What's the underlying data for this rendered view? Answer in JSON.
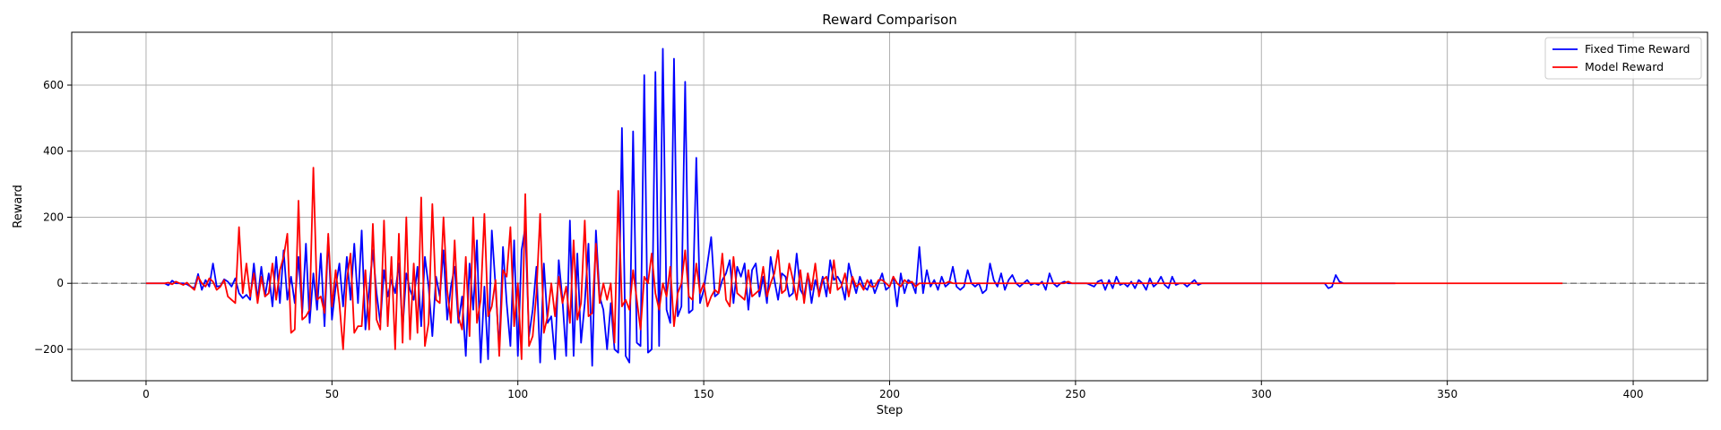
{
  "chart_data": {
    "type": "line",
    "title": "Reward Comparison",
    "xlabel": "Step",
    "ylabel": "Reward",
    "xlim": [
      -20,
      420
    ],
    "ylim": [
      -295,
      760
    ],
    "x_ticks": [
      0,
      50,
      100,
      150,
      200,
      250,
      300,
      350,
      400
    ],
    "y_ticks": [
      -200,
      0,
      200,
      400,
      600
    ],
    "grid": true,
    "legend_position": "top-right",
    "reference_line": {
      "y": 0,
      "style": "dashed",
      "color": "#808080"
    },
    "x_start": 0,
    "x_step": 1,
    "series": [
      {
        "name": "Fixed Time Reward",
        "color": "#0000ff",
        "values": [
          0,
          0,
          0,
          0,
          0,
          0,
          -6,
          8,
          0,
          0,
          0,
          -3,
          -10,
          -15,
          28,
          -20,
          10,
          -10,
          60,
          -10,
          -8,
          12,
          5,
          -10,
          15,
          -30,
          -45,
          -35,
          -50,
          60,
          -50,
          50,
          -40,
          30,
          -70,
          80,
          -60,
          100,
          -50,
          20,
          -60,
          80,
          -90,
          120,
          -120,
          30,
          -80,
          90,
          -130,
          140,
          -110,
          -10,
          60,
          -70,
          80,
          -50,
          120,
          -60,
          160,
          -140,
          -20,
          100,
          -30,
          -120,
          40,
          -40,
          10,
          -30,
          60,
          -140,
          30,
          -20,
          -50,
          50,
          -130,
          80,
          -10,
          -160,
          20,
          -40,
          100,
          -110,
          -10,
          50,
          -120,
          -40,
          -220,
          60,
          -80,
          130,
          -240,
          -10,
          -230,
          160,
          -10,
          -200,
          110,
          -60,
          -190,
          130,
          -220,
          100,
          170,
          -160,
          -80,
          50,
          -240,
          60,
          -120,
          -100,
          -230,
          70,
          -50,
          -220,
          190,
          -220,
          90,
          -180,
          -60,
          120,
          -250,
          160,
          -40,
          -80,
          -200,
          -60,
          -200,
          -210,
          470,
          -220,
          -240,
          460,
          -180,
          -190,
          630,
          -210,
          -200,
          640,
          -190,
          710,
          -80,
          -120,
          680,
          -100,
          -70,
          610,
          -90,
          -80,
          380,
          -60,
          -20,
          60,
          140,
          -40,
          -30,
          10,
          30,
          70,
          -60,
          50,
          20,
          60,
          -80,
          40,
          60,
          -40,
          20,
          -60,
          80,
          10,
          -50,
          30,
          20,
          -40,
          -30,
          90,
          -20,
          -40,
          30,
          -60,
          10,
          -30,
          20,
          -40,
          70,
          10,
          20,
          0,
          -50,
          60,
          10,
          -30,
          20,
          -10,
          -20,
          10,
          -30,
          0,
          30,
          -20,
          -10,
          20,
          -70,
          30,
          -30,
          10,
          0,
          -30,
          110,
          -30,
          40,
          -10,
          10,
          -20,
          20,
          -10,
          0,
          50,
          -10,
          -20,
          -10,
          40,
          0,
          -10,
          0,
          -30,
          -20,
          60,
          10,
          -10,
          30,
          -20,
          10,
          25,
          0,
          -10,
          0,
          10,
          -5,
          0,
          -5,
          5,
          -20,
          30,
          0,
          -10,
          0,
          5,
          0,
          0,
          0,
          0,
          0,
          0,
          -5,
          -10,
          5,
          10,
          -20,
          10,
          -15,
          20,
          -5,
          0,
          -10,
          5,
          -15,
          10,
          0,
          -20,
          15,
          -10,
          0,
          20,
          -5,
          -15,
          20,
          -5,
          0,
          0,
          -10,
          0,
          10,
          -5,
          0,
          0,
          0,
          0,
          0,
          0,
          0,
          0,
          0,
          0,
          0,
          0,
          0,
          0,
          0,
          0,
          0,
          0,
          0,
          0,
          0,
          0,
          0,
          0,
          0,
          0,
          0,
          0,
          0,
          0,
          0,
          0,
          0,
          0,
          -15,
          -10,
          25,
          5,
          0,
          0,
          0,
          0,
          0,
          0,
          0,
          0,
          0,
          0,
          0,
          0,
          0,
          0,
          0
        ]
      },
      {
        "name": "Model Reward",
        "color": "#ff0000",
        "values": [
          0,
          0,
          0,
          0,
          0,
          0,
          2,
          -3,
          5,
          0,
          -5,
          2,
          -10,
          -20,
          20,
          0,
          -10,
          15,
          5,
          -20,
          -10,
          10,
          -40,
          -50,
          -60,
          170,
          -30,
          60,
          -40,
          30,
          -60,
          20,
          -40,
          -30,
          60,
          -50,
          40,
          80,
          150,
          -150,
          -140,
          250,
          -110,
          -100,
          -80,
          350,
          -50,
          -40,
          -90,
          150,
          -70,
          40,
          -60,
          -200,
          10,
          90,
          -150,
          -130,
          -130,
          40,
          -140,
          180,
          -110,
          -140,
          190,
          -130,
          80,
          -200,
          150,
          -180,
          200,
          -170,
          60,
          -150,
          260,
          -190,
          -120,
          240,
          -50,
          -60,
          200,
          -20,
          -120,
          130,
          -100,
          -140,
          80,
          -160,
          200,
          -120,
          -50,
          210,
          -100,
          -70,
          10,
          -220,
          40,
          20,
          170,
          -130,
          0,
          -230,
          270,
          -190,
          -160,
          -30,
          210,
          -150,
          -100,
          0,
          -100,
          20,
          -60,
          -10,
          -120,
          130,
          -110,
          -60,
          190,
          -100,
          -90,
          120,
          -60,
          0,
          -50,
          0,
          -180,
          280,
          -70,
          -50,
          -80,
          40,
          -50,
          -140,
          20,
          0,
          90,
          -30,
          -80,
          0,
          -40,
          50,
          -130,
          -30,
          0,
          100,
          -40,
          -50,
          60,
          -30,
          0,
          -70,
          -40,
          -20,
          -30,
          90,
          -50,
          -70,
          80,
          -30,
          -40,
          -50,
          40,
          -40,
          -30,
          -20,
          50,
          -40,
          0,
          30,
          100,
          -30,
          -20,
          60,
          10,
          -50,
          40,
          -60,
          30,
          -20,
          60,
          -40,
          10,
          20,
          -30,
          70,
          -20,
          -10,
          30,
          -40,
          20,
          -10,
          0,
          -20,
          10,
          -10,
          -10,
          10,
          10,
          0,
          -10,
          20,
          0,
          -10,
          10,
          0,
          5,
          -10,
          0,
          0,
          0,
          0,
          0,
          0,
          0,
          0,
          5,
          0,
          0,
          0,
          0,
          0,
          0,
          0,
          0,
          0,
          0,
          0,
          0,
          0,
          0,
          0,
          0,
          0,
          0,
          0,
          0,
          0,
          0,
          0,
          0,
          0,
          0,
          0,
          0,
          0,
          0,
          0,
          5,
          0,
          0,
          0,
          0,
          0,
          0,
          0,
          0,
          0,
          0,
          0,
          0,
          0,
          0,
          0,
          0,
          0,
          0,
          0,
          0,
          0,
          0,
          0,
          0,
          0,
          0,
          0,
          0,
          0,
          0,
          0,
          0,
          0,
          0,
          0,
          0,
          0,
          0,
          0,
          0,
          0,
          0,
          0,
          0,
          0,
          0,
          0,
          0,
          0,
          0,
          0,
          0,
          0,
          0,
          0,
          0,
          0,
          0,
          0,
          0,
          0,
          0,
          0,
          0,
          0,
          0,
          0,
          0,
          0,
          0,
          0,
          0,
          0,
          0,
          0,
          0,
          0,
          0,
          0,
          0,
          0,
          0,
          0,
          0,
          0,
          0,
          0,
          0,
          0,
          0,
          0,
          0,
          0,
          0,
          0,
          0,
          0,
          0,
          0,
          0,
          0,
          0,
          0,
          0,
          0,
          0,
          0,
          0,
          0,
          0,
          0,
          0,
          0,
          0,
          0,
          0,
          0,
          0,
          0,
          0,
          0,
          0,
          0,
          0,
          0,
          0,
          0,
          0,
          0,
          0,
          0,
          0,
          0
        ]
      }
    ]
  }
}
